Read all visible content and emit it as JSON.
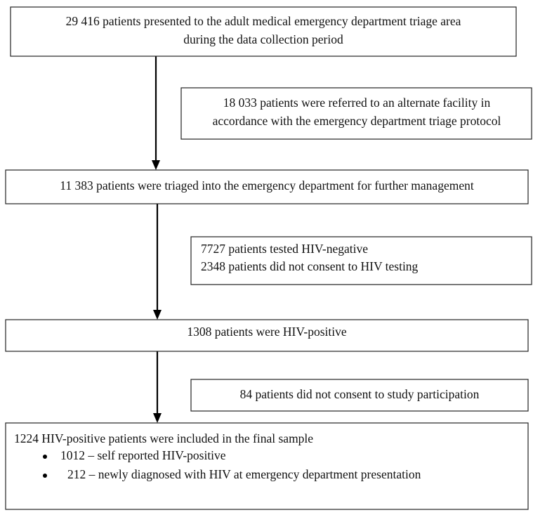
{
  "nodes": [
    {
      "lines": [
        "29 416 patients presented to the adult medical emergency department triage area",
        "during the data collection period"
      ]
    },
    {
      "lines": [
        "18 033 patients were referred to an alternate facility in",
        "accordance with the emergency department triage protocol"
      ]
    },
    {
      "lines": [
        "11 383 patients were triaged into the emergency department for further management"
      ]
    },
    {
      "lines": [
        "7727 patients tested HIV-negative",
        "2348 patients did not consent to HIV testing"
      ]
    },
    {
      "lines": [
        "1308 patients were HIV-positive"
      ]
    },
    {
      "lines": [
        "84 patients did not consent to study participation"
      ]
    },
    {
      "lines": [
        "1224 HIV-positive patients were included in the final sample"
      ],
      "bullets": [
        "1012 – self reported HIV-positive",
        "212 – newly diagnosed with HIV at emergency department presentation"
      ]
    }
  ]
}
